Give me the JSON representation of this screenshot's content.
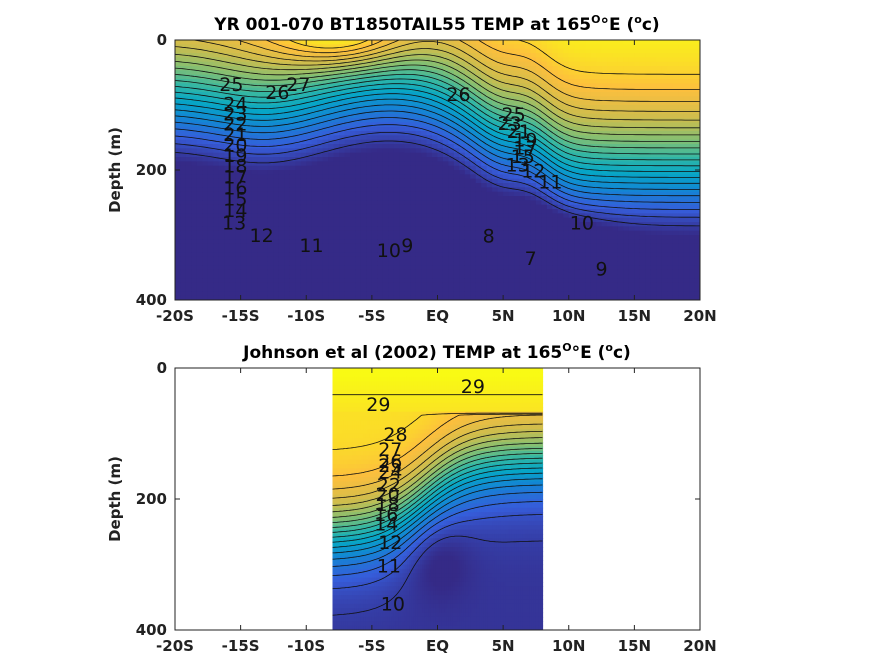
{
  "chart_data": [
    {
      "type": "heatmap",
      "title": "YR 001-070 BT1850TAIL55 TEMP at 165",
      "title_units": "°E (",
      "title_sup1": "O",
      "title_sup2": "o",
      "title_end": "c)",
      "ylabel": "Depth (m)",
      "xlim": [
        -20,
        20
      ],
      "ylim": [
        400,
        0
      ],
      "x_ticks": [
        -20,
        -15,
        -10,
        -5,
        0,
        5,
        10,
        15,
        20
      ],
      "x_tick_labels": [
        "-20S",
        "-15S",
        "-10S",
        "-5S",
        "EQ",
        "5N",
        "10N",
        "15N",
        "20N"
      ],
      "y_ticks": [
        0,
        200,
        400
      ],
      "y_tick_labels": [
        "0",
        "200",
        "400"
      ],
      "data_extent": [
        -20,
        20
      ],
      "colormap": "parula",
      "contour_levels": [
        7,
        8,
        9,
        10,
        11,
        12,
        13,
        14,
        15,
        16,
        17,
        18,
        19,
        20,
        21,
        22,
        23,
        24,
        25,
        26,
        27
      ],
      "contour_labels": [
        {
          "text": "25",
          "x": -15.7,
          "y": 70
        },
        {
          "text": "27",
          "x": -10.6,
          "y": 70
        },
        {
          "text": "26",
          "x": -12.2,
          "y": 82
        },
        {
          "text": "24",
          "x": -15.4,
          "y": 100
        },
        {
          "text": "23",
          "x": -15.4,
          "y": 115
        },
        {
          "text": "22",
          "x": -15.4,
          "y": 131
        },
        {
          "text": "21",
          "x": -15.4,
          "y": 147
        },
        {
          "text": "20",
          "x": -15.4,
          "y": 163
        },
        {
          "text": "19",
          "x": -15.4,
          "y": 179
        },
        {
          "text": "18",
          "x": -15.4,
          "y": 195
        },
        {
          "text": "17",
          "x": -15.4,
          "y": 212
        },
        {
          "text": "16",
          "x": -15.4,
          "y": 229
        },
        {
          "text": "15",
          "x": -15.4,
          "y": 246
        },
        {
          "text": "14",
          "x": -15.4,
          "y": 264
        },
        {
          "text": "13",
          "x": -15.5,
          "y": 283
        },
        {
          "text": "12",
          "x": -13.4,
          "y": 302
        },
        {
          "text": "11",
          "x": -9.6,
          "y": 318
        },
        {
          "text": "10",
          "x": -3.7,
          "y": 325
        },
        {
          "text": "9",
          "x": -2.3,
          "y": 318
        },
        {
          "text": "8",
          "x": 3.9,
          "y": 303
        },
        {
          "text": "7",
          "x": 7.1,
          "y": 338
        },
        {
          "text": "26",
          "x": 1.6,
          "y": 85
        },
        {
          "text": "25",
          "x": 5.8,
          "y": 116
        },
        {
          "text": "23",
          "x": 5.5,
          "y": 130
        },
        {
          "text": "21",
          "x": 6.2,
          "y": 142
        },
        {
          "text": "19",
          "x": 6.7,
          "y": 155
        },
        {
          "text": "17",
          "x": 6.7,
          "y": 168
        },
        {
          "text": "15",
          "x": 6.5,
          "y": 181
        },
        {
          "text": "13",
          "x": 6.1,
          "y": 194
        },
        {
          "text": "12",
          "x": 7.3,
          "y": 203
        },
        {
          "text": "11",
          "x": 8.6,
          "y": 220
        },
        {
          "text": "10",
          "x": 11.0,
          "y": 283
        },
        {
          "text": "9",
          "x": 12.5,
          "y": 354
        }
      ]
    },
    {
      "type": "heatmap",
      "title": "Johnson et al (2002) TEMP at 165",
      "title_units": "°E (",
      "title_sup1": "O",
      "title_sup2": "o",
      "title_end": "c)",
      "ylabel": "Depth (m)",
      "xlim": [
        -20,
        20
      ],
      "ylim": [
        400,
        0
      ],
      "x_ticks": [
        -20,
        -15,
        -10,
        -5,
        0,
        5,
        10,
        15,
        20
      ],
      "x_tick_labels": [
        "-20S",
        "-15S",
        "-10S",
        "-5S",
        "EQ",
        "5N",
        "10N",
        "15N",
        "20N"
      ],
      "y_ticks": [
        0,
        200,
        400
      ],
      "y_tick_labels": [
        "0",
        "200",
        "400"
      ],
      "data_extent": [
        -8,
        8
      ],
      "colormap": "parula",
      "contour_levels": [
        10,
        11,
        12,
        13,
        14,
        15,
        16,
        17,
        18,
        19,
        20,
        21,
        22,
        23,
        24,
        25,
        26,
        27,
        28,
        29
      ],
      "contour_labels": [
        {
          "text": "29",
          "x": -4.5,
          "y": 57
        },
        {
          "text": "29",
          "x": 2.7,
          "y": 30
        },
        {
          "text": "28",
          "x": -3.2,
          "y": 103
        },
        {
          "text": "27",
          "x": -3.6,
          "y": 126
        },
        {
          "text": "26",
          "x": -3.6,
          "y": 144
        },
        {
          "text": "25",
          "x": -3.6,
          "y": 150
        },
        {
          "text": "24",
          "x": -3.6,
          "y": 160
        },
        {
          "text": "22",
          "x": -3.7,
          "y": 180
        },
        {
          "text": "20",
          "x": -3.8,
          "y": 195
        },
        {
          "text": "18",
          "x": -3.8,
          "y": 210
        },
        {
          "text": "16",
          "x": -3.9,
          "y": 225
        },
        {
          "text": "14",
          "x": -3.9,
          "y": 240
        },
        {
          "text": "12",
          "x": -3.6,
          "y": 268
        },
        {
          "text": "11",
          "x": -3.7,
          "y": 304
        },
        {
          "text": "10",
          "x": -3.4,
          "y": 362
        }
      ]
    }
  ]
}
